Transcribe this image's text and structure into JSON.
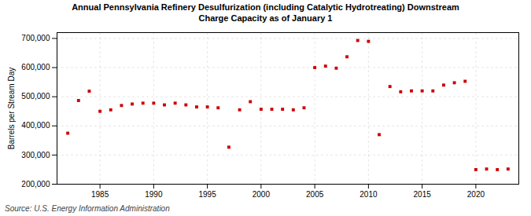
{
  "chart_data": {
    "type": "scatter",
    "title": "Annual Pennsylvania Refinery Desulfurization (including Catalytic Hydrotreating) Downstream\nCharge Capacity as of January 1",
    "ylabel": "Barrels per Stream Day",
    "annotations": [
      "Source: U.S. Energy Information Administration"
    ],
    "x": [
      1982,
      1983,
      1984,
      1985,
      1986,
      1987,
      1988,
      1989,
      1990,
      1991,
      1992,
      1993,
      1994,
      1995,
      1996,
      1997,
      1998,
      1999,
      2000,
      2001,
      2002,
      2003,
      2004,
      2005,
      2006,
      2007,
      2008,
      2009,
      2010,
      2011,
      2012,
      2013,
      2014,
      2015,
      2016,
      2017,
      2018,
      2019,
      2020,
      2021,
      2022,
      2023
    ],
    "values": [
      375000,
      487000,
      519000,
      450000,
      455000,
      470000,
      475000,
      478000,
      478000,
      472000,
      478000,
      472000,
      465000,
      465000,
      462000,
      327000,
      455000,
      483000,
      457000,
      457000,
      457000,
      455000,
      462000,
      600000,
      605000,
      598000,
      637000,
      693000,
      690000,
      370000,
      535000,
      517000,
      520000,
      520000,
      520000,
      540000,
      548000,
      553000,
      250000,
      252000,
      250000,
      252000
    ],
    "color": "#cc0000",
    "marker": "square",
    "xlim": [
      1981,
      2024
    ],
    "xticks": [
      1985,
      1990,
      1995,
      2000,
      2005,
      2010,
      2015,
      2020
    ],
    "ylim": [
      200000,
      720000
    ],
    "yticks": [
      {
        "value": 200000,
        "label": "200,000"
      },
      {
        "value": 300000,
        "label": "300,000"
      },
      {
        "value": 400000,
        "label": "400,000"
      },
      {
        "value": 500000,
        "label": "500,000"
      },
      {
        "value": 600000,
        "label": "600,000"
      },
      {
        "value": 700000,
        "label": "700,000"
      }
    ],
    "grid": true
  }
}
